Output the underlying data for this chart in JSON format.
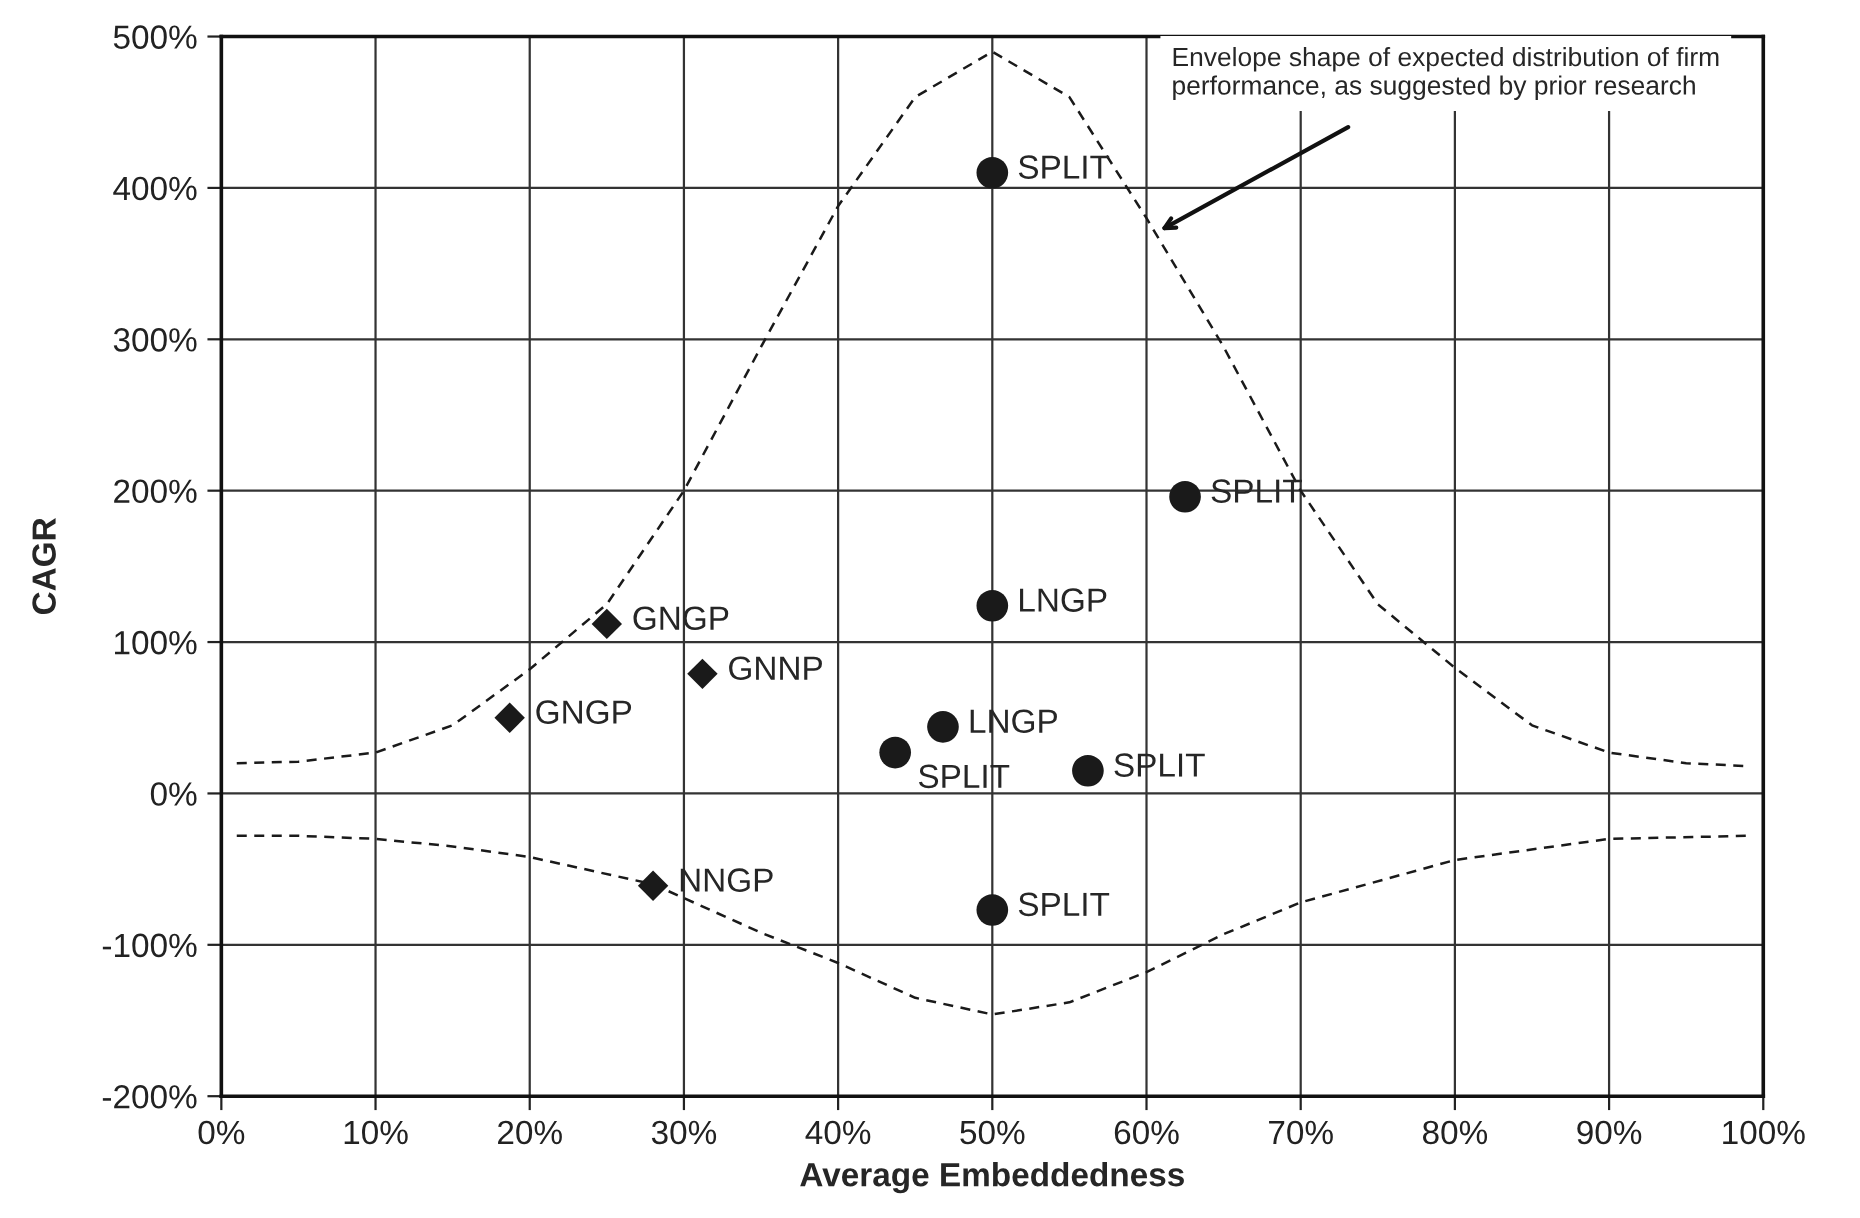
{
  "chart_data": {
    "type": "scatter",
    "xlabel": "Average Embeddedness",
    "ylabel": "CAGR",
    "series": [
      {
        "color": "#1a1a1a",
        "marker": "diamond",
        "x": [
          18.7,
          25,
          31.2,
          28
        ],
        "values": [
          50,
          112,
          79,
          -61
        ]
      },
      {
        "color": "#1a1a1a",
        "marker": "circle",
        "x": [
          50,
          62.5,
          50,
          46.8,
          43.7,
          56.2,
          50
        ],
        "values": [
          410,
          196,
          124,
          44,
          27,
          15,
          -77
        ]
      },
      {
        "type": "line",
        "color": "#1a1a1a",
        "line_style": "dashed",
        "marker": "none",
        "x": [
          1,
          5,
          10,
          15,
          20,
          25,
          30,
          35,
          40,
          45,
          50,
          55,
          60,
          65,
          70,
          75,
          80,
          85,
          90,
          95,
          99
        ],
        "values": [
          20,
          21,
          27,
          45,
          82,
          125,
          200,
          295,
          388,
          460,
          490,
          460,
          380,
          295,
          200,
          125,
          83,
          45,
          27,
          20,
          18
        ]
      },
      {
        "type": "line",
        "color": "#1a1a1a",
        "line_style": "dashed",
        "marker": "none",
        "x": [
          1,
          5,
          10,
          15,
          20,
          28,
          35,
          40,
          45,
          50,
          55,
          60,
          65,
          70,
          80,
          90,
          99
        ],
        "values": [
          -28,
          -28,
          -30,
          -35,
          -42,
          -60,
          -92,
          -112,
          -135,
          -146,
          -138,
          -118,
          -93,
          -72,
          -44,
          -30,
          -28
        ]
      }
    ],
    "xlim": [
      0,
      100
    ],
    "ylim": [
      -200,
      500
    ],
    "xticks": [
      {
        "value": 0,
        "label": "0%"
      },
      {
        "value": 10,
        "label": "10%"
      },
      {
        "value": 20,
        "label": "20%"
      },
      {
        "value": 30,
        "label": "30%"
      },
      {
        "value": 40,
        "label": "40%"
      },
      {
        "value": 50,
        "label": "50%"
      },
      {
        "value": 60,
        "label": "60%"
      },
      {
        "value": 70,
        "label": "70%"
      },
      {
        "value": 80,
        "label": "80%"
      },
      {
        "value": 90,
        "label": "90%"
      },
      {
        "value": 100,
        "label": "100%"
      }
    ],
    "yticks": [
      {
        "value": -200,
        "label": "-200%"
      },
      {
        "value": -100,
        "label": "-100%"
      },
      {
        "value": 0,
        "label": "0%"
      },
      {
        "value": 100,
        "label": "100%"
      },
      {
        "value": 200,
        "label": "200%"
      },
      {
        "value": 300,
        "label": "300%"
      },
      {
        "value": 400,
        "label": "400%"
      },
      {
        "value": 500,
        "label": "500%"
      }
    ],
    "grid": true,
    "legend": false,
    "annotations": [
      {
        "text": "GNGP",
        "x": 18.7,
        "y": 50
      },
      {
        "text": "GNGP",
        "x": 25,
        "y": 112
      },
      {
        "text": "GNNP",
        "x": 31.2,
        "y": 79
      },
      {
        "text": "NNGP",
        "x": 28,
        "y": -61
      },
      {
        "text": "SPLIT",
        "x": 50,
        "y": 410
      },
      {
        "text": "SPLIT",
        "x": 62.5,
        "y": 196
      },
      {
        "text": "LNGP",
        "x": 50,
        "y": 124
      },
      {
        "text": "LNGP",
        "x": 46.8,
        "y": 44
      },
      {
        "text": "SPLIT",
        "x": 43.7,
        "y": 27
      },
      {
        "text": "SPLIT",
        "x": 56.2,
        "y": 15
      },
      {
        "text": "SPLIT",
        "x": 50,
        "y": -77
      },
      {
        "text": "Envelope shape of expected distribution of firm performance, as suggested by prior research",
        "x": 60.9,
        "y": 372
      }
    ]
  }
}
